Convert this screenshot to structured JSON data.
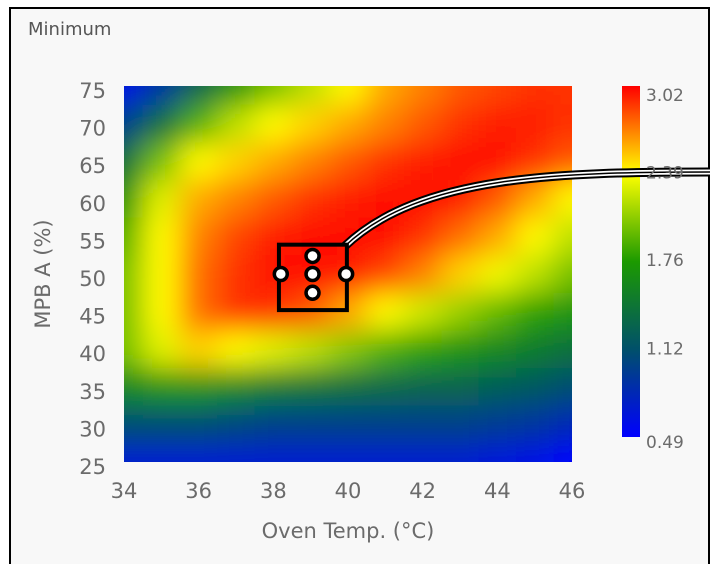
{
  "chart_data": {
    "type": "heatmap",
    "title": "Minimum",
    "x_label": "Oven Temp. (°C)",
    "y_label": "MPB A (%)",
    "x": [
      34,
      35,
      36,
      37,
      38,
      39,
      40,
      41,
      42,
      43,
      44,
      45,
      46
    ],
    "y": [
      75,
      70,
      65,
      60,
      55,
      50,
      45,
      40,
      35,
      30,
      25
    ],
    "z": [
      [
        0.6,
        0.9,
        1.3,
        1.7,
        2.0,
        2.2,
        2.4,
        2.6,
        2.7,
        2.8,
        2.85,
        2.9,
        2.9
      ],
      [
        1.0,
        1.4,
        1.9,
        2.2,
        2.4,
        2.5,
        2.6,
        2.7,
        2.8,
        2.9,
        2.95,
        2.95,
        2.9
      ],
      [
        1.4,
        2.0,
        2.4,
        2.5,
        2.6,
        2.7,
        2.8,
        2.9,
        2.95,
        3.0,
        3.0,
        2.9,
        2.8
      ],
      [
        1.7,
        2.3,
        2.6,
        2.7,
        2.8,
        2.9,
        2.95,
        3.0,
        3.0,
        2.95,
        2.8,
        2.6,
        2.4
      ],
      [
        1.9,
        2.4,
        2.7,
        2.85,
        2.95,
        3.0,
        3.0,
        3.0,
        2.9,
        2.75,
        2.6,
        2.4,
        2.2
      ],
      [
        2.0,
        2.4,
        2.75,
        2.9,
        3.0,
        3.0,
        2.95,
        2.85,
        2.7,
        2.5,
        2.35,
        2.2,
        2.0
      ],
      [
        2.0,
        2.4,
        2.75,
        2.9,
        2.9,
        2.8,
        2.6,
        2.4,
        2.25,
        2.1,
        1.95,
        1.8,
        1.7
      ],
      [
        2.0,
        2.3,
        2.5,
        2.4,
        2.3,
        2.2,
        2.05,
        1.9,
        1.8,
        1.7,
        1.6,
        1.5,
        1.4
      ],
      [
        1.6,
        1.7,
        1.7,
        1.6,
        1.5,
        1.45,
        1.4,
        1.35,
        1.3,
        1.3,
        1.25,
        1.2,
        1.1
      ],
      [
        1.1,
        1.1,
        1.1,
        1.05,
        1.0,
        1.0,
        1.0,
        1.0,
        1.0,
        1.0,
        0.95,
        0.9,
        0.8
      ],
      [
        0.7,
        0.7,
        0.7,
        0.7,
        0.7,
        0.7,
        0.7,
        0.7,
        0.7,
        0.7,
        0.65,
        0.6,
        0.5
      ]
    ],
    "xlim": [
      34,
      46
    ],
    "xticks": [
      34,
      36,
      38,
      40,
      42,
      44,
      46
    ],
    "ylim": [
      25,
      75
    ],
    "yticks": [
      25,
      30,
      35,
      40,
      45,
      50,
      55,
      60,
      65,
      70,
      75
    ],
    "zlim": [
      0.49,
      3.02
    ],
    "zticks": [
      0.49,
      1.12,
      1.76,
      2.39,
      3.02
    ],
    "colorscale": [
      "#0000ff",
      "#00506a",
      "#1c9a00",
      "#ffff00",
      "#ff0000"
    ],
    "region": {
      "x": [
        38.15,
        39.97
      ],
      "y": [
        45.2,
        53.9
      ],
      "color": "#000000"
    },
    "points": {
      "x": [
        38.2,
        39.05,
        39.05,
        39.05,
        39.95
      ],
      "y": [
        50,
        52.4,
        50,
        47.5,
        50
      ],
      "color": "#000000"
    }
  }
}
